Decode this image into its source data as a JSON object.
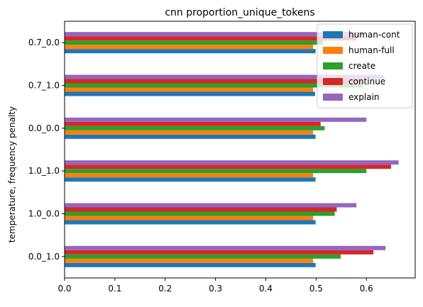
{
  "chart_data": {
    "type": "bar",
    "orientation": "horizontal",
    "title": "cnn proportion_unique_tokens",
    "xlabel": "",
    "ylabel": "temperature, frequency penalty",
    "xlim": [
      0,
      0.697
    ],
    "xticks": [
      "0.0",
      "0.1",
      "0.2",
      "0.3",
      "0.4",
      "0.5",
      "0.6"
    ],
    "categories": [
      "0.0_1.0",
      "1.0_0.0",
      "1.0_1.0",
      "0.0_0.0",
      "0.7_1.0",
      "0.7_0.0"
    ],
    "series": [
      {
        "name": "human-cont",
        "color": "#1f77b4",
        "values": [
          0.499,
          0.499,
          0.499,
          0.499,
          0.498,
          0.499
        ]
      },
      {
        "name": "human-full",
        "color": "#ff7f0e",
        "values": [
          0.494,
          0.494,
          0.494,
          0.494,
          0.494,
          0.494
        ]
      },
      {
        "name": "create",
        "color": "#2ca02c",
        "values": [
          0.549,
          0.537,
          0.6,
          0.517,
          0.593,
          0.514
        ]
      },
      {
        "name": "continue",
        "color": "#d62728",
        "values": [
          0.614,
          0.541,
          0.649,
          0.509,
          0.592,
          0.58
        ]
      },
      {
        "name": "explain",
        "color": "#9467bd",
        "values": [
          0.638,
          0.58,
          0.664,
          0.6,
          0.634,
          0.593
        ]
      }
    ],
    "legend": "top-right",
    "grid": false
  }
}
